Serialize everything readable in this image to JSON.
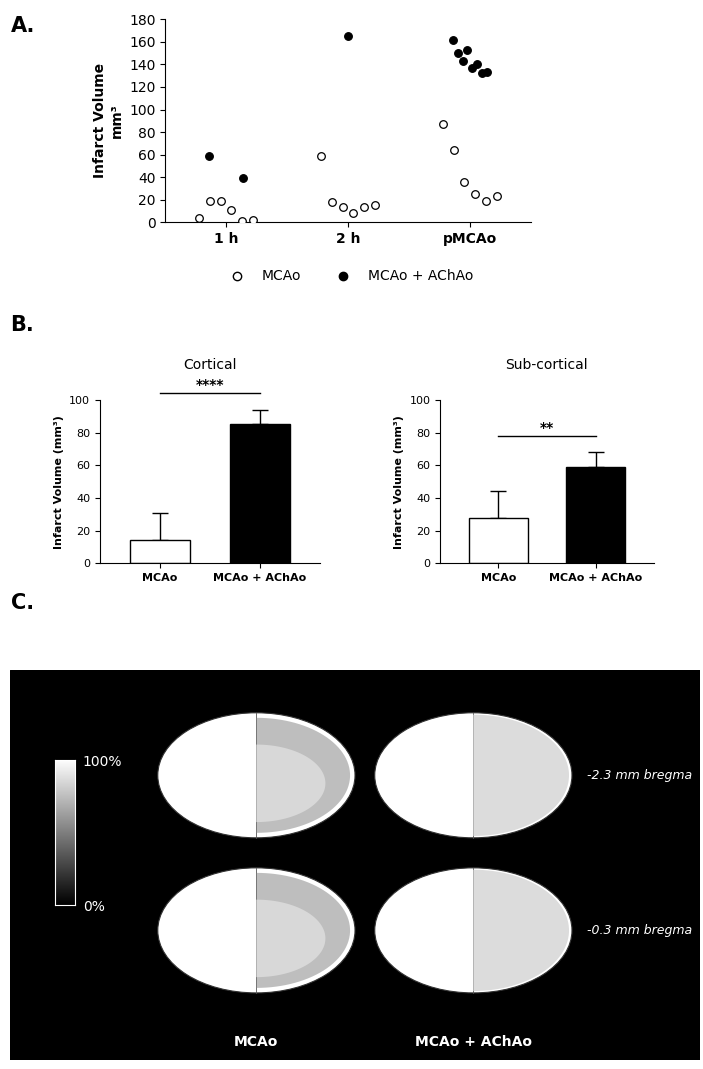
{
  "chart_data": [
    {
      "panel": "A.",
      "type": "scatter",
      "y_label": "Infarct Volume\nmm³",
      "categories": [
        "1 h",
        "2 h",
        "pMCAo"
      ],
      "ylim": [
        0,
        180
      ],
      "yticks": [
        0,
        20,
        40,
        60,
        80,
        100,
        120,
        140,
        160,
        180
      ],
      "legend": "bottom",
      "series": [
        {
          "name": "MCAo",
          "marker": "open",
          "color": "#000000",
          "values": [
            [
              4,
              19,
              19,
              11,
              1,
              2
            ],
            [
              59,
              18,
              14,
              8,
              14,
              15
            ],
            [
              87,
              64,
              36,
              25,
              19,
              23
            ]
          ]
        },
        {
          "name": "MCAo + AChAo",
          "marker": "filled",
          "color": "#000000",
          "values": [
            [
              59,
              39
            ],
            [
              165
            ],
            [
              162,
              150,
              143,
              153,
              137,
              140,
              132,
              133
            ]
          ]
        }
      ]
    },
    {
      "panel": "B.",
      "type": "bar",
      "title": "Cortical",
      "y_label": "Infarct Volume (mm³)",
      "categories": [
        "MCAo",
        "MCAo + AChAo"
      ],
      "values": [
        14,
        85
      ],
      "errors": [
        17,
        9
      ],
      "colors": [
        "#ffffff",
        "#000000"
      ],
      "ylim": [
        0,
        100
      ],
      "yticks": [
        0,
        20,
        40,
        60,
        80,
        100
      ],
      "annotations": [
        {
          "text": "****",
          "between": [
            0,
            1
          ]
        }
      ]
    },
    {
      "type": "bar",
      "title": "Sub-cortical",
      "y_label": "Infarct Volume (mm³)",
      "categories": [
        "MCAo",
        "MCAo + AChAo"
      ],
      "values": [
        28,
        59
      ],
      "errors": [
        16,
        9
      ],
      "colors": [
        "#ffffff",
        "#000000"
      ],
      "ylim": [
        0,
        100
      ],
      "yticks": [
        0,
        20,
        40,
        60,
        80,
        100
      ],
      "annotations": [
        {
          "text": "**",
          "between": [
            0,
            1
          ]
        }
      ]
    },
    {
      "panel": "C.",
      "type": "map",
      "groups": [
        "MCAo",
        "MCAo + AChAo"
      ],
      "sections": [
        "-2.3 mm bregma",
        "-0.3 mm bregma"
      ],
      "colorbar": {
        "range": [
          0,
          100
        ],
        "ticks": [
          {
            "value": 0,
            "label": "0%"
          },
          {
            "value": 100,
            "label": "100%"
          }
        ]
      }
    }
  ]
}
